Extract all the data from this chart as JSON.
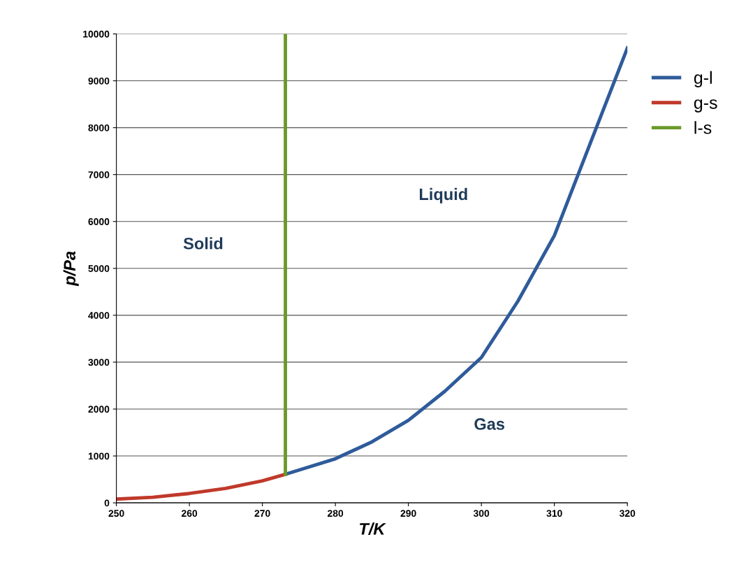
{
  "chart_data": {
    "type": "line",
    "xlabel": "T/K",
    "ylabel": "p/Pa",
    "xlim": [
      250,
      320
    ],
    "xticks": [
      250,
      260,
      270,
      280,
      290,
      300,
      310,
      320
    ],
    "ylim": [
      0,
      10000
    ],
    "yticks": [
      0,
      1000,
      2000,
      3000,
      4000,
      5000,
      6000,
      7000,
      8000,
      9000,
      10000
    ],
    "grid": "y",
    "legend": "right",
    "line_style": "solid",
    "marker": "none",
    "series": [
      {
        "name": "g-l",
        "color": "#2e5b9a",
        "x": [
          273.15,
          280,
          285,
          290,
          295,
          300,
          305,
          310,
          313,
          315,
          320
        ],
        "values": [
          610,
          940,
          1300,
          1760,
          2380,
          3100,
          4300,
          5700,
          6900,
          7700,
          9700
        ]
      },
      {
        "name": "g-s",
        "color": "#c0392b",
        "x": [
          250,
          255,
          260,
          265,
          270,
          273.15
        ],
        "values": [
          80,
          120,
          200,
          310,
          470,
          610
        ]
      },
      {
        "name": "l-s",
        "color": "#6b9a2a",
        "x": [
          273.15,
          273.15
        ],
        "values": [
          610,
          10000
        ]
      }
    ],
    "annotations": [
      "Solid",
      "Liquid",
      "Gas"
    ]
  }
}
